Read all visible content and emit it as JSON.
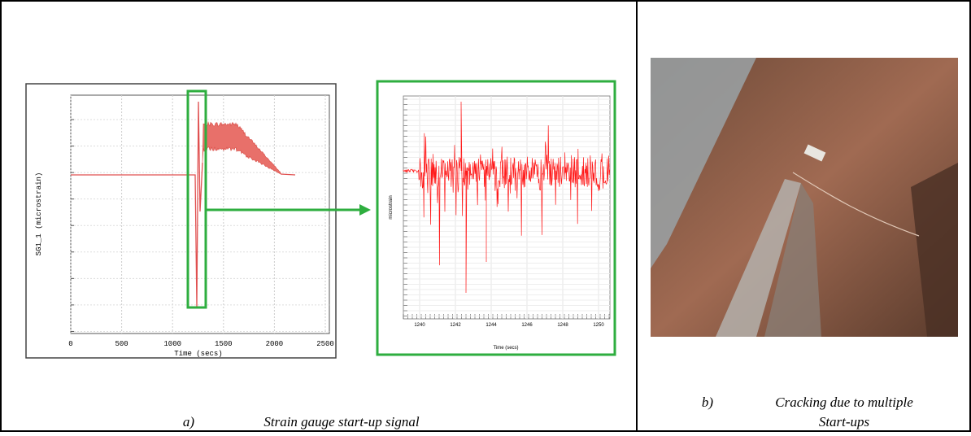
{
  "figure": {
    "panel_a": {
      "caption_label": "a)",
      "caption": "Strain gauge start-up signal",
      "main_plot": {
        "x_label": "Time (secs)",
        "y_label": "SG1_1 (microstrain)",
        "x_ticks": [
          0,
          500,
          1000,
          1500,
          2000,
          2500
        ]
      },
      "zoom_plot": {
        "x_label": "Time (secs)",
        "y_label": "microstrain",
        "x_ticks": [
          1240,
          1242,
          1244,
          1246,
          1248,
          1250
        ]
      }
    },
    "panel_b": {
      "caption_label": "b)",
      "caption_line1": "Cracking due to multiple",
      "caption_line2": "Start-ups"
    }
  }
}
